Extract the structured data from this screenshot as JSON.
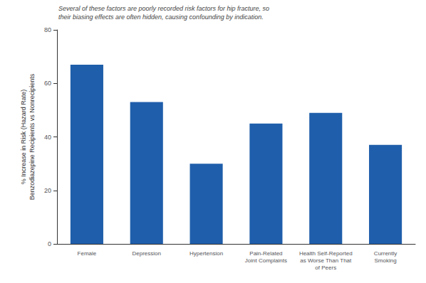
{
  "chart_data": {
    "type": "bar",
    "categories": [
      "Female",
      "Depression",
      "Hypertension",
      "Pain-Related\nJoint Complaints",
      "Health Self-Reported\nas Worse Than That\nof Peers",
      "Currently\nSmoking"
    ],
    "values": [
      67,
      53,
      30,
      45,
      49,
      37
    ],
    "color": "#1F5EAB",
    "ylabel": "% Increase in Risk (Hazard Rate)\nBenzodiazepine Recipients vs Nonrecipients",
    "annotation": "Several of these factors are poorly recorded risk factors for hip fracture, so\ntheir biasing effects are often hidden, causing confounding by indication.",
    "ylim": [
      0,
      80
    ],
    "yticks": [
      0,
      20,
      40,
      60,
      80
    ],
    "grid": false
  }
}
